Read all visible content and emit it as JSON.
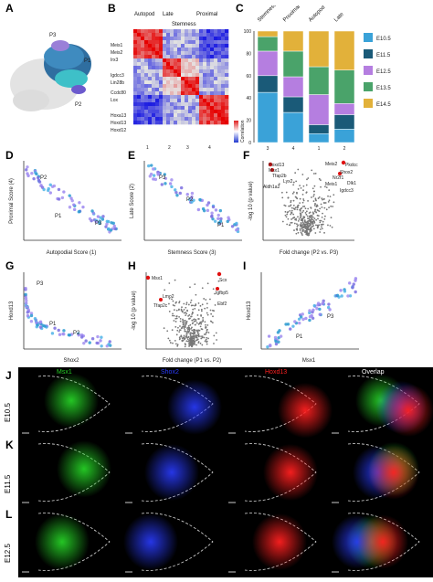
{
  "panels": {
    "A": {
      "label": "A",
      "clusters": [
        "P3",
        "P1",
        "P2"
      ]
    },
    "B": {
      "label": "B",
      "col_headers": [
        "Autopod",
        "Late",
        "Stemness",
        "Proximal"
      ],
      "row_genes": [
        "Meis1",
        "Meis2",
        "Irx3",
        "Igdcc3",
        "Lin28b",
        "Ccdc80",
        "Lox",
        "Hoxa13",
        "Hoxd13",
        "Hoxd12"
      ],
      "col_numbers": [
        "1",
        "2",
        "3",
        "4"
      ],
      "colorbar_label": "Correlation"
    },
    "C": {
      "label": "C",
      "col_headers": [
        "Stemness",
        "Proximal",
        "Autopod",
        "Late"
      ],
      "x_ticks": [
        "3",
        "4",
        "1",
        "2"
      ],
      "y_ticks": [
        "0",
        "20",
        "40",
        "60",
        "80",
        "100"
      ],
      "legend": [
        "E10.5",
        "E11.5",
        "E12.5",
        "E13.5",
        "E14.5"
      ]
    },
    "D": {
      "label": "D",
      "xlabel": "Autopodial Score (1)",
      "ylabel": "Proximal Score (4)",
      "x_ticks": [
        "0",
        "2",
        "4",
        "6",
        "8",
        "10",
        "12"
      ],
      "y_ticks": [
        "0",
        "2",
        "4",
        "6",
        "8"
      ],
      "annotations": [
        "P2",
        "P1",
        "P3"
      ]
    },
    "E": {
      "label": "E",
      "xlabel": "Stemness Score (3)",
      "ylabel": "Late Score (2)",
      "x_ticks": [
        "0",
        "1",
        "2",
        "3",
        "4",
        "5"
      ],
      "y_ticks": [
        "0",
        "2",
        "4",
        "6",
        "8",
        "10"
      ],
      "annotations": [
        "P3",
        "P2",
        "P1"
      ]
    },
    "F": {
      "label": "F",
      "xlabel": "Fold change (P2 vs. P3)",
      "ylabel": "-log 10 (p value)",
      "x_ticks": [
        "-4",
        "-3",
        "-2",
        "-1",
        "0",
        "1",
        "2",
        "3",
        "4"
      ],
      "genes": [
        "Hoxd13",
        "Msx1",
        "Tfap2b",
        "Lyx2",
        "Aldh1a2",
        "Meis2",
        "Pkdcc",
        "Shox2",
        "Nr2f1",
        "Meis1",
        "Dlk1",
        "Igdcc3"
      ]
    },
    "G": {
      "label": "G",
      "xlabel": "Shox2",
      "ylabel": "Hoxd13",
      "x_ticks": [
        "0.0",
        "0.5",
        "1.0",
        "1.5",
        "2.0"
      ],
      "annotations": [
        "P3",
        "P1",
        "P2"
      ]
    },
    "H": {
      "label": "H",
      "xlabel": "Fold change (P1 vs. P2)",
      "ylabel": "-log 10 (p value)",
      "x_ticks": [
        "-2",
        "-1",
        "0",
        "1",
        "2"
      ],
      "genes": [
        "Msx1",
        "Scx",
        "Igfbp5",
        "Lmo2",
        "Tfap2c",
        "Ebf2"
      ]
    },
    "I": {
      "label": "I",
      "xlabel": "Msx1",
      "ylabel": "Hoxd13",
      "x_ticks": [
        "0",
        "0.5",
        "1.0",
        "1.5",
        "2.0",
        "2.5"
      ],
      "annotations": [
        "P3",
        "P1"
      ]
    },
    "J": {
      "label": "J",
      "stage": "E10.5"
    },
    "K": {
      "label": "K",
      "stage": "E11.5"
    },
    "L": {
      "label": "L",
      "stage": "E12.5"
    },
    "micro_headers": [
      "Msx1",
      "Shox2",
      "Hoxd13",
      "Overlap"
    ]
  },
  "colors": {
    "green": "#26d026",
    "blue": "#2a3cff",
    "red": "#ff2020",
    "c1": "#3aa2d8",
    "c2": "#1a5a78",
    "c3": "#b57ee0",
    "c4": "#4aa36a",
    "c5": "#e2b13a"
  },
  "chart_data": [
    {
      "type": "bar",
      "panel": "C",
      "categories": [
        "3",
        "4",
        "1",
        "2"
      ],
      "series": [
        {
          "name": "E10.5",
          "values": [
            45,
            27,
            8,
            12
          ]
        },
        {
          "name": "E11.5",
          "values": [
            15,
            14,
            8,
            13
          ]
        },
        {
          "name": "E12.5",
          "values": [
            22,
            18,
            27,
            10
          ]
        },
        {
          "name": "E13.5",
          "values": [
            13,
            23,
            25,
            30
          ]
        },
        {
          "name": "E14.5",
          "values": [
            5,
            18,
            32,
            35
          ]
        }
      ],
      "ylim": [
        0,
        100
      ]
    }
  ]
}
